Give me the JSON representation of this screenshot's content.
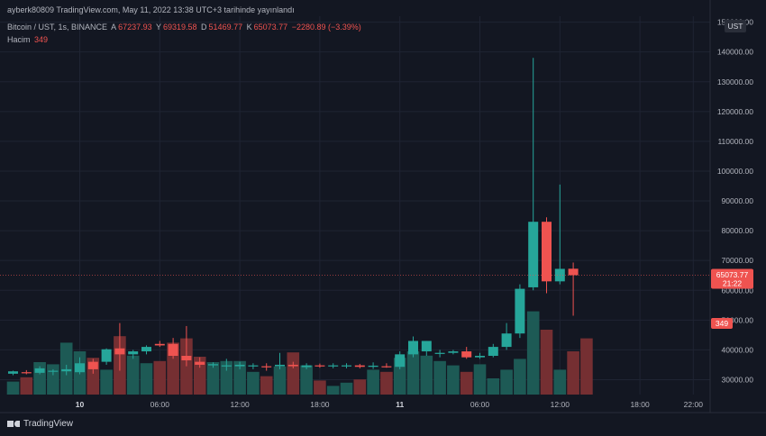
{
  "header": {
    "publish_line": "ayberk80809 TradingView.com, May 11, 2022 13:38 UTC+3 tarihinde yayınlandı",
    "symbol": "Bitcoin / UST, 1s, BINANCE",
    "o_label": "A",
    "o_value": "67237.93",
    "h_label": "Y",
    "h_value": "69319.58",
    "l_label": "D",
    "l_value": "51469.77",
    "c_label": "K",
    "c_value": "65073.77",
    "change": "−2280.89 (−3.39%)",
    "volume_label": "Hacim",
    "volume_value": "349"
  },
  "footer": {
    "brand": "TradingView"
  },
  "colors": {
    "up": "#26a69a",
    "down": "#ef5350",
    "up_vol": "#1e5e59",
    "down_vol": "#7a3034",
    "bg": "#131722",
    "grid": "#1f2433",
    "text": "#b2b5be"
  },
  "chart_data": {
    "type": "candlestick",
    "currency": "UST",
    "y_ticks": [
      "150000.00",
      "140000.00",
      "130000.00",
      "120000.00",
      "110000.00",
      "100000.00",
      "90000.00",
      "80000.00",
      "70000.00",
      "60000.00",
      "50000.00",
      "40000.00",
      "30000.00"
    ],
    "ylim": [
      25000,
      152000
    ],
    "x_ticks": [
      {
        "index": 5,
        "label": "10",
        "bold": true
      },
      {
        "index": 11,
        "label": "06:00"
      },
      {
        "index": 17,
        "label": "12:00"
      },
      {
        "index": 23,
        "label": "18:00"
      },
      {
        "index": 29,
        "label": "11",
        "bold": true
      },
      {
        "index": 35,
        "label": "06:00"
      },
      {
        "index": 41,
        "label": "12:00"
      },
      {
        "index": 47,
        "label": "18:00"
      },
      {
        "index": 51,
        "label": "22:00"
      }
    ],
    "last_price": {
      "value": 65073.77,
      "label": "65073.77",
      "countdown": "21:22"
    },
    "last_volume_label": "349",
    "candles": [
      {
        "o": 32000,
        "h": 33000,
        "l": 31500,
        "c": 32800,
        "v": 0.12
      },
      {
        "o": 32500,
        "h": 33200,
        "l": 31800,
        "c": 32300,
        "v": 0.16
      },
      {
        "o": 32300,
        "h": 34500,
        "l": 31800,
        "c": 33800,
        "v": 0.3
      },
      {
        "o": 32800,
        "h": 33500,
        "l": 31500,
        "c": 33000,
        "v": 0.28
      },
      {
        "o": 32800,
        "h": 35000,
        "l": 31500,
        "c": 33500,
        "v": 0.48
      },
      {
        "o": 32500,
        "h": 37500,
        "l": 31800,
        "c": 35500,
        "v": 0.4
      },
      {
        "o": 36000,
        "h": 37000,
        "l": 32000,
        "c": 33500,
        "v": 0.34
      },
      {
        "o": 36000,
        "h": 40500,
        "l": 35000,
        "c": 40200,
        "v": 0.23
      },
      {
        "o": 40500,
        "h": 49000,
        "l": 33000,
        "c": 38500,
        "v": 0.54
      },
      {
        "o": 38500,
        "h": 40000,
        "l": 37000,
        "c": 39500,
        "v": 0.36
      },
      {
        "o": 39500,
        "h": 41500,
        "l": 38500,
        "c": 41000,
        "v": 0.29
      },
      {
        "o": 42000,
        "h": 43000,
        "l": 41000,
        "c": 41500,
        "v": 0.31
      },
      {
        "o": 42000,
        "h": 44000,
        "l": 37000,
        "c": 38000,
        "v": 0.48
      },
      {
        "o": 38000,
        "h": 48000,
        "l": 34500,
        "c": 36500,
        "v": 0.52
      },
      {
        "o": 36000,
        "h": 37500,
        "l": 34000,
        "c": 35000,
        "v": 0.35
      },
      {
        "o": 34800,
        "h": 35800,
        "l": 34000,
        "c": 35200,
        "v": 0.3
      },
      {
        "o": 34500,
        "h": 37000,
        "l": 33000,
        "c": 34800,
        "v": 0.31
      },
      {
        "o": 34500,
        "h": 36000,
        "l": 33500,
        "c": 35000,
        "v": 0.31
      },
      {
        "o": 34500,
        "h": 35500,
        "l": 33500,
        "c": 34800,
        "v": 0.21
      },
      {
        "o": 34500,
        "h": 35500,
        "l": 33000,
        "c": 34300,
        "v": 0.17
      },
      {
        "o": 34500,
        "h": 39000,
        "l": 33500,
        "c": 35000,
        "v": 0.26
      },
      {
        "o": 35000,
        "h": 36000,
        "l": 33800,
        "c": 34500,
        "v": 0.39
      },
      {
        "o": 34200,
        "h": 35500,
        "l": 33500,
        "c": 34800,
        "v": 0.27
      },
      {
        "o": 34800,
        "h": 35400,
        "l": 34000,
        "c": 34500,
        "v": 0.13
      },
      {
        "o": 34500,
        "h": 35500,
        "l": 33800,
        "c": 34800,
        "v": 0.08
      },
      {
        "o": 34500,
        "h": 35500,
        "l": 33800,
        "c": 34800,
        "v": 0.11
      },
      {
        "o": 34800,
        "h": 35300,
        "l": 33800,
        "c": 34300,
        "v": 0.14
      },
      {
        "o": 34300,
        "h": 35800,
        "l": 33600,
        "c": 34700,
        "v": 0.23
      },
      {
        "o": 34500,
        "h": 35500,
        "l": 34000,
        "c": 34300,
        "v": 0.21
      },
      {
        "o": 34300,
        "h": 39500,
        "l": 33500,
        "c": 38500,
        "v": 0.34
      },
      {
        "o": 38500,
        "h": 44500,
        "l": 37500,
        "c": 43000,
        "v": 0.4
      },
      {
        "o": 39500,
        "h": 43000,
        "l": 38000,
        "c": 43000,
        "v": 0.36
      },
      {
        "o": 39000,
        "h": 40000,
        "l": 37500,
        "c": 39000,
        "v": 0.31
      },
      {
        "o": 39000,
        "h": 40000,
        "l": 38500,
        "c": 39500,
        "v": 0.27
      },
      {
        "o": 39500,
        "h": 41000,
        "l": 37000,
        "c": 37500,
        "v": 0.21
      },
      {
        "o": 37500,
        "h": 39000,
        "l": 37000,
        "c": 38000,
        "v": 0.28
      },
      {
        "o": 38000,
        "h": 42000,
        "l": 37500,
        "c": 41000,
        "v": 0.15
      },
      {
        "o": 41000,
        "h": 49000,
        "l": 40000,
        "c": 45500,
        "v": 0.23
      },
      {
        "o": 45500,
        "h": 62000,
        "l": 44000,
        "c": 60500,
        "v": 0.33
      },
      {
        "o": 61000,
        "h": 138000,
        "l": 60000,
        "c": 83000,
        "v": 0.77
      },
      {
        "o": 83000,
        "h": 84500,
        "l": 59000,
        "c": 63000,
        "v": 0.6
      },
      {
        "o": 63000,
        "h": 95500,
        "l": 62000,
        "c": 67200,
        "v": 0.23
      },
      {
        "o": 67237.93,
        "h": 69319.58,
        "l": 51469.77,
        "c": 65073.77,
        "v": 0.4
      }
    ],
    "live_volume": 0.52
  }
}
